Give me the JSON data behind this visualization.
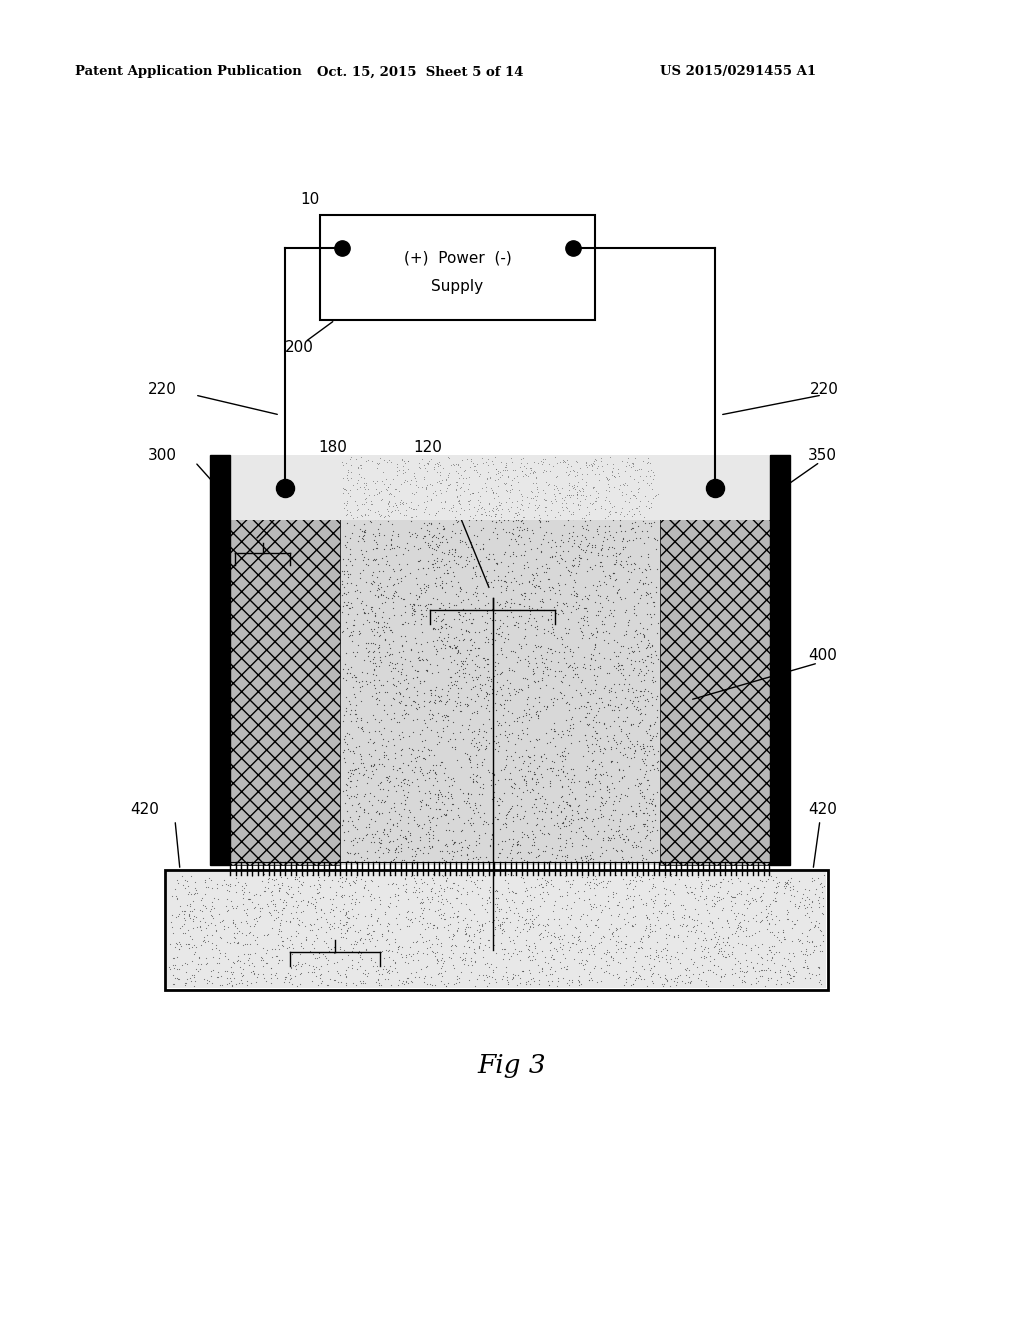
{
  "bg_color": "#ffffff",
  "header_left": "Patent Application Publication",
  "header_center": "Oct. 15, 2015  Sheet 5 of 14",
  "header_right": "US 2015/0291455 A1",
  "fig_label": "Fig 3",
  "label_10": "10",
  "label_200": "200",
  "label_220_left": "220",
  "label_220_right": "220",
  "label_300": "300",
  "label_350": "350",
  "label_180": "180",
  "label_120": "120",
  "label_400": "400",
  "label_420_left": "420",
  "label_420_right": "420"
}
